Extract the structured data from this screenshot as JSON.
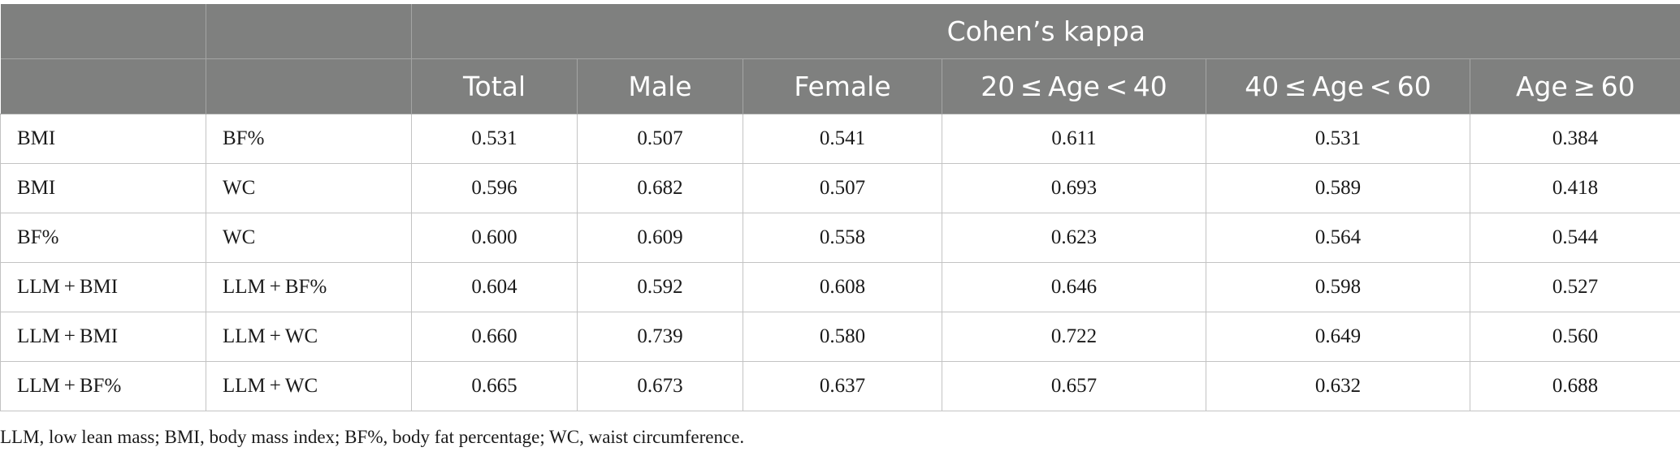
{
  "table": {
    "group_header": "Cohen’s kappa",
    "columns": [
      "Total",
      "Male",
      "Female",
      "20 ≤ Age < 40",
      "40 ≤ Age < 60",
      "Age ≥ 60"
    ],
    "rows": [
      {
        "a": "BMI",
        "b": "BF%",
        "values": [
          "0.531",
          "0.507",
          "0.541",
          "0.611",
          "0.531",
          "0.384"
        ]
      },
      {
        "a": "BMI",
        "b": "WC",
        "values": [
          "0.596",
          "0.682",
          "0.507",
          "0.693",
          "0.589",
          "0.418"
        ]
      },
      {
        "a": "BF%",
        "b": "WC",
        "values": [
          "0.600",
          "0.609",
          "0.558",
          "0.623",
          "0.564",
          "0.544"
        ]
      },
      {
        "a": "LLM + BMI",
        "b": "LLM + BF%",
        "values": [
          "0.604",
          "0.592",
          "0.608",
          "0.646",
          "0.598",
          "0.527"
        ]
      },
      {
        "a": "LLM + BMI",
        "b": "LLM + WC",
        "values": [
          "0.660",
          "0.739",
          "0.580",
          "0.722",
          "0.649",
          "0.560"
        ]
      },
      {
        "a": "LLM + BF%",
        "b": "LLM + WC",
        "values": [
          "0.665",
          "0.673",
          "0.637",
          "0.657",
          "0.632",
          "0.688"
        ]
      }
    ]
  },
  "footnote": "LLM, low lean mass; BMI, body mass index; BF%, body fat percentage; WC, waist circumference."
}
